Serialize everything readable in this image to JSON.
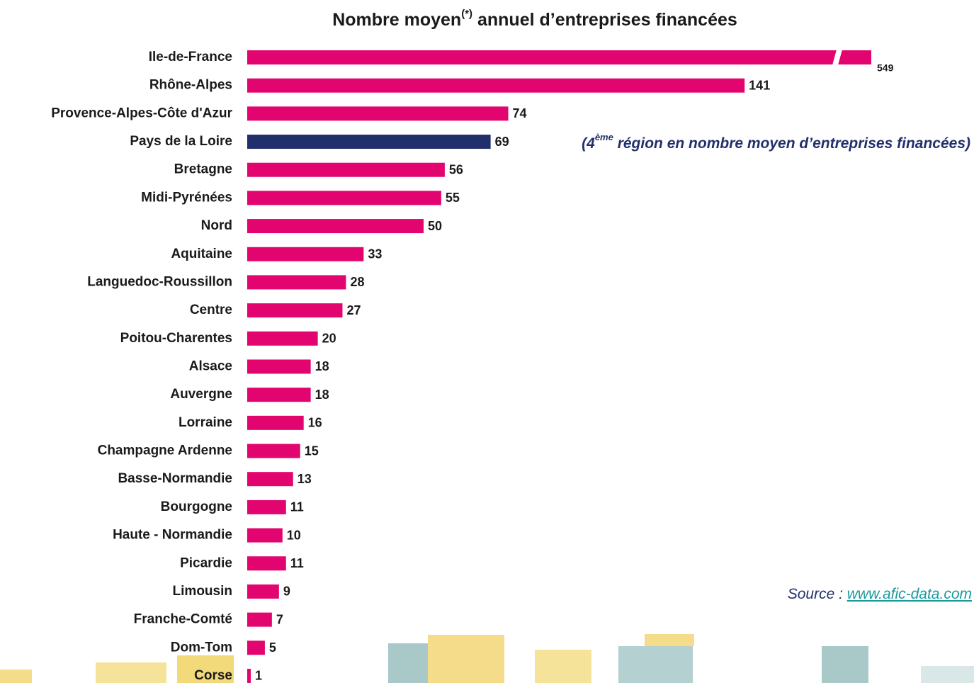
{
  "chart_data": {
    "type": "bar",
    "orientation": "horizontal",
    "title": [
      "Nombre moyen",
      "(*)",
      " annuel d’entreprises financées"
    ],
    "categories": [
      "Ile-de-France",
      "Rhône-Alpes",
      "Provence-Alpes-Côte d'Azur",
      "Pays de la Loire",
      "Bretagne",
      "Midi-Pyrénées",
      "Nord",
      "Aquitaine",
      "Languedoc-Roussillon",
      "Centre",
      "Poitou-Charentes",
      "Alsace",
      "Auvergne",
      "Lorraine",
      "Champagne Ardenne",
      "Basse-Normandie",
      "Bourgogne",
      "Haute - Normandie",
      "Picardie",
      "Limousin",
      "Franche-Comté",
      "Dom-Tom",
      "Corse"
    ],
    "values": [
      549,
      141,
      74,
      69,
      56,
      55,
      50,
      33,
      28,
      27,
      20,
      18,
      18,
      16,
      15,
      13,
      11,
      10,
      11,
      9,
      7,
      5,
      1
    ],
    "colors": [
      "#e2046f",
      "#e2046f",
      "#e2046f",
      "#21306b",
      "#e2046f",
      "#e2046f",
      "#e2046f",
      "#e2046f",
      "#e2046f",
      "#e2046f",
      "#e2046f",
      "#e2046f",
      "#e2046f",
      "#e2046f",
      "#e2046f",
      "#e2046f",
      "#e2046f",
      "#e2046f",
      "#e2046f",
      "#e2046f",
      "#e2046f",
      "#e2046f",
      "#e2046f"
    ],
    "annotation": [
      "(4",
      "ème",
      " région en nombre moyen d’entreprises financées)"
    ],
    "source": [
      "Source : ",
      "www.afic-data.com"
    ]
  }
}
